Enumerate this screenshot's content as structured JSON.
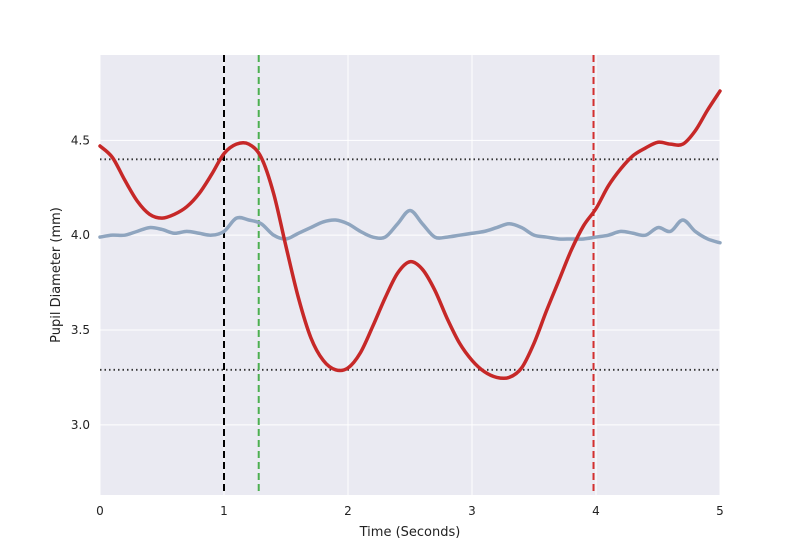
{
  "chart_data": {
    "type": "line",
    "title": "",
    "xlabel": "Time (Seconds)",
    "ylabel": "Pupil Diameter (mm)",
    "xlim": [
      0,
      5
    ],
    "ylim": [
      2.63,
      4.95
    ],
    "xticks": [
      0,
      1,
      2,
      3,
      4,
      5
    ],
    "xtick_labels": [
      "0",
      "1",
      "2",
      "3",
      "4",
      "5"
    ],
    "yticks": [
      3.0,
      3.5,
      4.0,
      4.5
    ],
    "ytick_labels": [
      "3.0",
      "3.5",
      "4.0",
      "4.5"
    ],
    "grid": true,
    "legend": "none",
    "colors": {
      "background": "#eaeaf2",
      "grid": "#ffffff",
      "red_series": "#c62828",
      "blue_series": "#8fa5bf",
      "threshold": "#333333",
      "black_marker": "#000000",
      "green_marker": "#4caf50",
      "red_marker": "#d32f2f"
    },
    "series": [
      {
        "color": "#c62828",
        "x": [
          0,
          0.1,
          0.2,
          0.3,
          0.4,
          0.5,
          0.6,
          0.7,
          0.8,
          0.9,
          1.0,
          1.1,
          1.2,
          1.3,
          1.4,
          1.5,
          1.6,
          1.7,
          1.8,
          1.9,
          2.0,
          2.1,
          2.2,
          2.3,
          2.4,
          2.5,
          2.6,
          2.7,
          2.8,
          2.9,
          3.0,
          3.1,
          3.2,
          3.3,
          3.4,
          3.5,
          3.6,
          3.7,
          3.8,
          3.9,
          4.0,
          4.1,
          4.2,
          4.3,
          4.4,
          4.5,
          4.6,
          4.7,
          4.8,
          4.9,
          5.0
        ],
        "y": [
          4.47,
          4.41,
          4.29,
          4.18,
          4.11,
          4.09,
          4.11,
          4.15,
          4.22,
          4.32,
          4.43,
          4.48,
          4.48,
          4.41,
          4.22,
          3.94,
          3.67,
          3.46,
          3.34,
          3.29,
          3.3,
          3.38,
          3.52,
          3.67,
          3.8,
          3.86,
          3.82,
          3.71,
          3.56,
          3.43,
          3.34,
          3.28,
          3.25,
          3.25,
          3.3,
          3.43,
          3.6,
          3.76,
          3.92,
          4.05,
          4.14,
          4.26,
          4.35,
          4.42,
          4.46,
          4.49,
          4.48,
          4.48,
          4.55,
          4.66,
          4.76
        ]
      },
      {
        "color": "#8fa5bf",
        "x": [
          0,
          0.1,
          0.2,
          0.3,
          0.4,
          0.5,
          0.6,
          0.7,
          0.8,
          0.9,
          1.0,
          1.1,
          1.2,
          1.3,
          1.4,
          1.5,
          1.6,
          1.7,
          1.8,
          1.9,
          2.0,
          2.1,
          2.2,
          2.3,
          2.4,
          2.5,
          2.6,
          2.7,
          2.8,
          2.9,
          3.0,
          3.1,
          3.2,
          3.3,
          3.4,
          3.5,
          3.6,
          3.7,
          3.8,
          3.9,
          4.0,
          4.1,
          4.2,
          4.3,
          4.4,
          4.5,
          4.6,
          4.7,
          4.8,
          4.9,
          5.0
        ],
        "y": [
          3.99,
          4.0,
          4.0,
          4.02,
          4.04,
          4.03,
          4.01,
          4.02,
          4.01,
          4.0,
          4.02,
          4.09,
          4.08,
          4.06,
          4.0,
          3.98,
          4.01,
          4.04,
          4.07,
          4.08,
          4.06,
          4.02,
          3.99,
          3.99,
          4.06,
          4.13,
          4.06,
          3.99,
          3.99,
          4.0,
          4.01,
          4.02,
          4.04,
          4.06,
          4.04,
          4.0,
          3.99,
          3.98,
          3.98,
          3.98,
          3.99,
          4.0,
          4.02,
          4.01,
          4.0,
          4.04,
          4.02,
          4.08,
          4.02,
          3.98,
          3.96
        ]
      }
    ],
    "horizontal_lines": [
      {
        "y": 4.4,
        "style": "dotted",
        "color": "#333333"
      },
      {
        "y": 3.29,
        "style": "dotted",
        "color": "#333333"
      }
    ],
    "vertical_lines": [
      {
        "x": 1.0,
        "style": "dashed",
        "color": "#000000"
      },
      {
        "x": 1.28,
        "style": "dashed",
        "color": "#4caf50"
      },
      {
        "x": 3.98,
        "style": "dashed",
        "color": "#d32f2f"
      }
    ]
  }
}
